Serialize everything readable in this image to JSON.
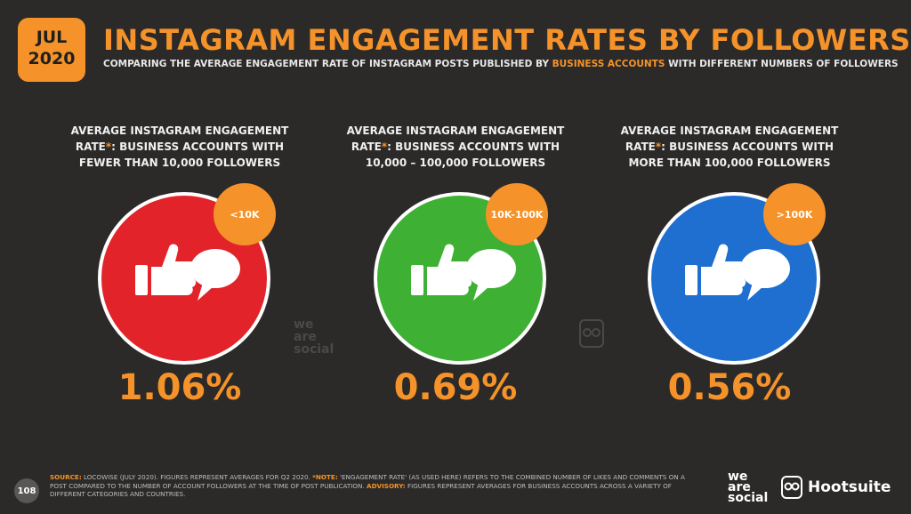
{
  "date_badge": {
    "month": "JUL",
    "year": "2020"
  },
  "title": "INSTAGRAM ENGAGEMENT RATES BY FOLLOWERS",
  "subtitle": {
    "pre": "COMPARING THE AVERAGE ENGAGEMENT RATE OF INSTAGRAM POSTS PUBLISHED BY ",
    "highlight": "BUSINESS ACCOUNTS",
    "post": " WITH DIFFERENT NUMBERS OF FOLLOWERS"
  },
  "panels": [
    {
      "line1": "AVERAGE INSTAGRAM ENGAGEMENT",
      "line2a": "RATE",
      "star": "*",
      "line2b": ": BUSINESS ACCOUNTS WITH",
      "line3": "FEWER THAN 10,000 FOLLOWERS",
      "badge": "<10K",
      "value": "1.06%",
      "color": "#e2232a"
    },
    {
      "line1": "AVERAGE INSTAGRAM ENGAGEMENT",
      "line2a": "RATE",
      "star": "*",
      "line2b": ": BUSINESS ACCOUNTS WITH",
      "line3": "10,000 – 100,000 FOLLOWERS",
      "badge": "10K-100K",
      "value": "0.69%",
      "color": "#3eb134"
    },
    {
      "line1": "AVERAGE INSTAGRAM ENGAGEMENT",
      "line2a": "RATE",
      "star": "*",
      "line2b": ": BUSINESS ACCOUNTS WITH",
      "line3": "MORE THAN 100,000 FOLLOWERS",
      "badge": ">100K",
      "value": "0.56%",
      "color": "#1e6fd0"
    }
  ],
  "watermark": {
    "l1": "we",
    "l2": "are",
    "l3": "social"
  },
  "footer": {
    "page": "108",
    "source_label": "SOURCE:",
    "source_text": " LOCOWISE (JULY 2020). FIGURES REPRESENT AVERAGES FOR Q2 2020. ",
    "note_label": "*NOTE:",
    "note_text": " 'ENGAGEMENT RATE' (AS USED HERE) REFERS TO THE COMBINED NUMBER OF LIKES AND COMMENTS ON A POST COMPARED TO THE NUMBER OF ACCOUNT FOLLOWERS AT THE TIME OF POST PUBLICATION. ",
    "advisory_label": "ADVISORY:",
    "advisory_text": " FIGURES REPRESENT AVERAGES FOR BUSINESS ACCOUNTS ACROSS A VARIETY OF DIFFERENT CATEGORIES AND COUNTRIES."
  },
  "logos": {
    "ws1": "we",
    "ws2": "are",
    "ws3": "social",
    "hootsuite": "Hootsuite"
  }
}
